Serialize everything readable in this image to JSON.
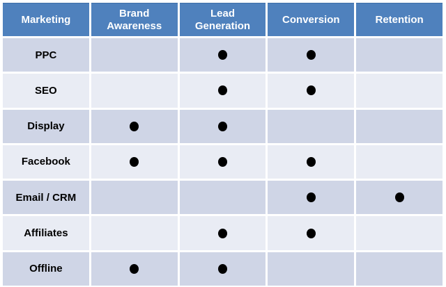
{
  "table": {
    "columns": [
      "Marketing",
      "Brand Awareness",
      "Lead Generation",
      "Conversion",
      "Retention"
    ],
    "rows": [
      {
        "label": "PPC",
        "dots": [
          false,
          true,
          true,
          false
        ]
      },
      {
        "label": "SEO",
        "dots": [
          false,
          true,
          true,
          false
        ]
      },
      {
        "label": "Display",
        "dots": [
          true,
          true,
          false,
          false
        ]
      },
      {
        "label": "Facebook",
        "dots": [
          true,
          true,
          true,
          false
        ]
      },
      {
        "label": "Email / CRM",
        "dots": [
          false,
          false,
          true,
          true
        ]
      },
      {
        "label": "Affiliates",
        "dots": [
          false,
          true,
          true,
          false
        ]
      },
      {
        "label": "Offline",
        "dots": [
          true,
          true,
          false,
          false
        ]
      }
    ]
  },
  "symbols": {
    "dot": "●"
  },
  "colors": {
    "header_bg": "#4f81bd",
    "header_edge": "#3d6ea8",
    "header_text": "#ffffff",
    "row_dark": "#cfd5e6",
    "row_light": "#e9ecf4",
    "dot": "#000000",
    "background": "#ffffff",
    "label_text": "#000000"
  },
  "chart_data": {
    "type": "table",
    "title": "",
    "columns": [
      "Marketing",
      "Brand Awareness",
      "Lead Generation",
      "Conversion",
      "Retention"
    ],
    "rows": [
      [
        "PPC",
        "",
        "●",
        "●",
        ""
      ],
      [
        "SEO",
        "",
        "●",
        "●",
        ""
      ],
      [
        "Display",
        "●",
        "●",
        "",
        ""
      ],
      [
        "Facebook",
        "●",
        "●",
        "●",
        ""
      ],
      [
        "Email / CRM",
        "",
        "",
        "●",
        "●"
      ],
      [
        "Affiliates",
        "",
        "●",
        "●",
        ""
      ],
      [
        "Offline",
        "●",
        "●",
        "",
        ""
      ]
    ],
    "layout": {
      "header_row": true,
      "banded_rows": true,
      "grid": "white-gaps"
    }
  }
}
